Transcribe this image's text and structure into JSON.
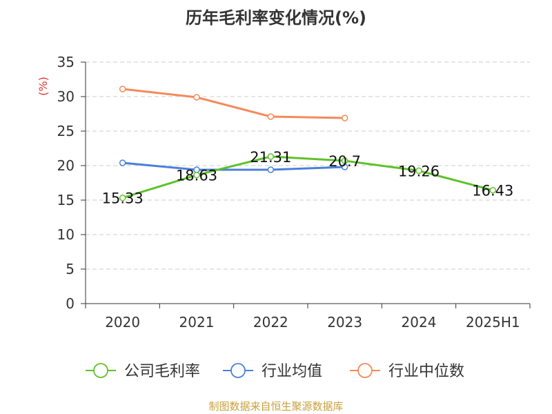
{
  "title": "历年毛利率变化情况(%)",
  "source": "制图数据来自恒生聚源数据库",
  "chart_data": {
    "type": "line",
    "title": "历年毛利率变化情况(%)",
    "ylabel": "(%)",
    "xlabel": "",
    "categories": [
      "2020",
      "2021",
      "2022",
      "2023",
      "2024",
      "2025H1"
    ],
    "ylim": [
      0,
      35
    ],
    "yticks": [
      0,
      5,
      10,
      15,
      20,
      25,
      30,
      35
    ],
    "grid": true,
    "legend_position": "bottom",
    "series": [
      {
        "name": "公司毛利率",
        "color": "#5ec12a",
        "values": [
          15.33,
          18.63,
          21.31,
          20.7,
          19.26,
          16.43
        ],
        "labels": [
          "15.33",
          "18.63",
          "21.31",
          "20.7",
          "19.26",
          "16.43"
        ]
      },
      {
        "name": "行业均值",
        "color": "#4a7fdb",
        "values": [
          20.4,
          19.4,
          19.4,
          19.8,
          null,
          null
        ]
      },
      {
        "name": "行业中位数",
        "color": "#f5895a",
        "values": [
          31.1,
          29.9,
          27.1,
          26.9,
          null,
          null
        ]
      }
    ]
  },
  "colors": {
    "axis": "#333333",
    "grid": "#cccccc",
    "ylabel": "#e03030"
  }
}
